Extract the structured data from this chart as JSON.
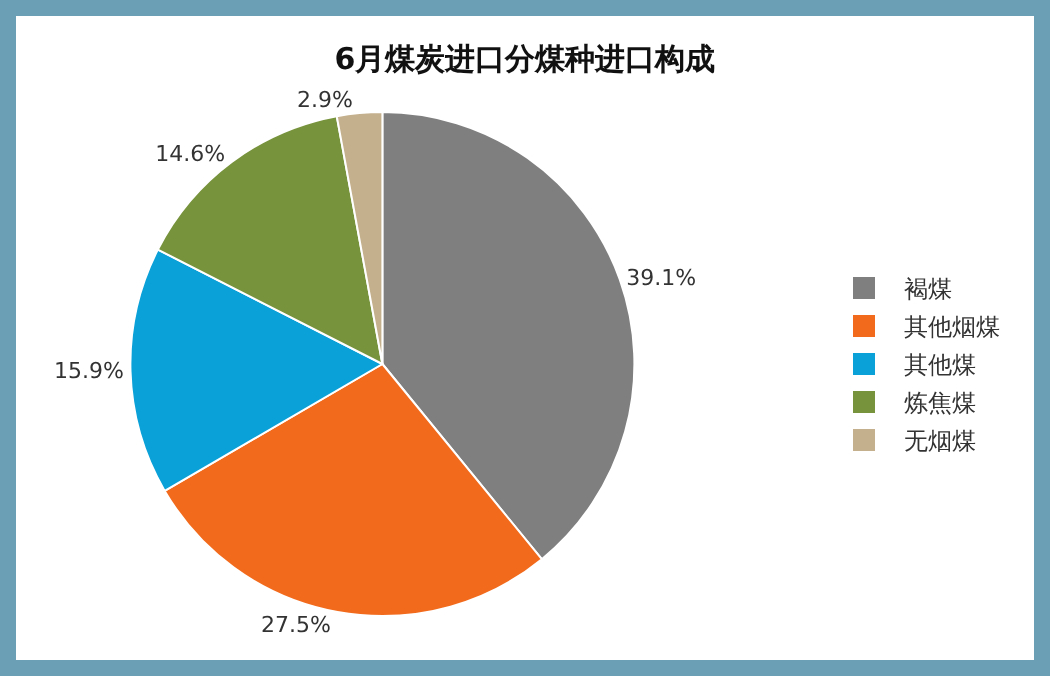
{
  "chart_data": {
    "type": "pie",
    "title": "6月煤炭进口分煤种进口构成",
    "categories": [
      "褐煤",
      "其他烟煤",
      "其他煤",
      "炼焦煤",
      "无烟煤"
    ],
    "values": [
      39.1,
      27.5,
      15.9,
      14.6,
      2.9
    ],
    "colors": [
      "#7f7f7f",
      "#f26b1d",
      "#0aa0d8",
      "#77933c",
      "#c4b08c"
    ],
    "value_labels": [
      "39.1%",
      "27.5%",
      "15.9%",
      "14.6%",
      "2.9%"
    ],
    "legend": "right"
  }
}
